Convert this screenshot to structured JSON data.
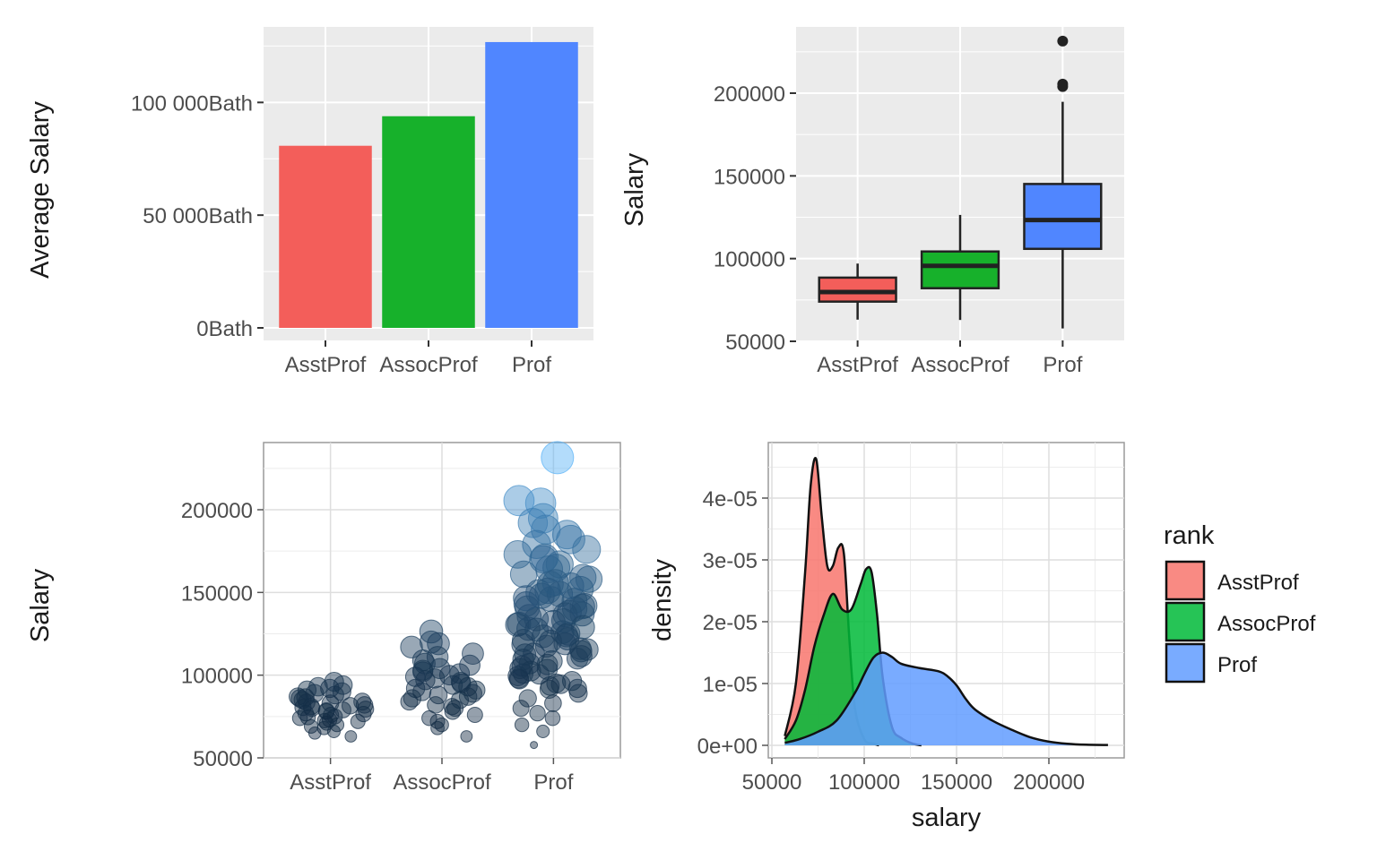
{
  "colors": {
    "asst": "#F8766D",
    "assoc": "#00BA38",
    "prof": "#619CFF",
    "bar_asst": "#F35E5A",
    "bar_assoc": "#17B12B",
    "bar_prof": "#5086FF",
    "point_dark": "#132B43",
    "point_light": "#56B1F7",
    "panel_bg": "#EBEBEB"
  },
  "chart_data": [
    {
      "type": "bar",
      "categories": [
        "AsstProf",
        "AssocProf",
        "Prof"
      ],
      "values": [
        80776,
        93876,
        126772
      ],
      "ylabel": "Average Salary",
      "xlabel": "",
      "ylim": [
        0,
        133112
      ],
      "yticks": [
        0,
        50000,
        100000
      ],
      "ytick_labels": [
        "0Bath",
        "50 000Bath",
        "100 000Bath"
      ],
      "grid": true
    },
    {
      "type": "box",
      "categories": [
        "AsstProf",
        "AssocProf",
        "Prof"
      ],
      "boxes": [
        {
          "lower_whisker": 63100,
          "q1": 74000,
          "median": 79800,
          "q3": 88500,
          "upper_whisker": 97000,
          "outliers": []
        },
        {
          "lower_whisker": 62900,
          "q1": 82100,
          "median": 95600,
          "q3": 104300,
          "upper_whisker": 126400,
          "outliers": []
        },
        {
          "lower_whisker": 57800,
          "q1": 105900,
          "median": 123300,
          "q3": 145100,
          "upper_whisker": 194800,
          "outliers": [
            204000,
            205500,
            231500
          ]
        }
      ],
      "ylabel": "Salary",
      "xlabel": "",
      "ylim": [
        47000,
        240000
      ],
      "yticks": [
        50000,
        100000,
        150000,
        200000
      ],
      "grid": true
    },
    {
      "type": "scatter",
      "categories": [
        "AsstProf",
        "AssocProf",
        "Prof"
      ],
      "description": "jittered points, size and color mapped to salary",
      "points": {
        "AsstProf": [
          92000,
          88000,
          85000,
          80000,
          78000,
          76000,
          74000,
          72000,
          70000,
          68000,
          65000,
          63000,
          90000,
          86000,
          83000,
          81000,
          79000,
          77000,
          75000,
          73000,
          91000,
          87000,
          84000,
          82000,
          80500,
          78500,
          76500,
          74500,
          72500,
          96000,
          94000,
          89000,
          83500,
          79500,
          71000,
          69000,
          66000,
          93000,
          86500,
          81500
        ],
        "AssocProf": [
          126400,
          120000,
          117000,
          113000,
          109000,
          106000,
          104000,
          102000,
          100000,
          98000,
          96000,
          94000,
          92000,
          90000,
          88000,
          86000,
          84000,
          82000,
          80000,
          78000,
          76000,
          74000,
          72000,
          70000,
          68000,
          63000,
          119000,
          111000,
          107000,
          103000,
          101000,
          99000,
          97000,
          95000,
          93000,
          91000,
          89000,
          87000,
          85000,
          81000
        ],
        "Prof": [
          231500,
          205500,
          204000,
          194800,
          192000,
          188000,
          185000,
          182000,
          179000,
          176000,
          173000,
          170000,
          167000,
          164000,
          161000,
          158000,
          155000,
          152000,
          149000,
          146000,
          143000,
          140000,
          137000,
          134000,
          131000,
          128000,
          125000,
          122000,
          119000,
          116000,
          113000,
          110000,
          107000,
          104000,
          101000,
          98000,
          95000,
          92000,
          89000,
          86000,
          83000,
          80000,
          77000,
          74000,
          70000,
          66000,
          57800,
          150000,
          145000,
          140500,
          135500,
          130500,
          126000,
          121000,
          117500,
          112500,
          108500,
          103500,
          99500,
          96500,
          93500,
          154000,
          148000,
          142000,
          138000,
          133000,
          127500,
          123500,
          118500,
          114500,
          109500,
          105500,
          102500,
          100500,
          97500,
          94500,
          91500,
          171000,
          165000,
          159000,
          156000,
          151000,
          146500,
          141500,
          136500,
          132000,
          129000,
          124000,
          120500,
          115500,
          111500,
          106500
        ]
      },
      "ylabel": "Salary",
      "xlabel": "",
      "ylim": [
        50000,
        240000
      ],
      "yticks": [
        50000,
        100000,
        150000,
        200000
      ],
      "grid": true
    },
    {
      "type": "area",
      "description": "density curves per rank",
      "series": [
        {
          "name": "AsstProf",
          "x": [
            57000,
            63000,
            68000,
            71000,
            74000,
            77000,
            80000,
            83000,
            86000,
            89000,
            92000,
            95000,
            100000,
            105000,
            108000
          ],
          "y": [
            1.5e-06,
            1e-05,
            2.8e-05,
            4.2e-05,
            4.63e-05,
            3.7e-05,
            2.9e-05,
            2.9e-05,
            3.2e-05,
            3.1e-05,
            1.7e-05,
            6e-06,
            1e-06,
            3e-07,
            0
          ]
        },
        {
          "name": "AssocProf",
          "x": [
            57000,
            63000,
            68000,
            73000,
            78000,
            83000,
            88000,
            93000,
            98000,
            101000,
            104000,
            107000,
            110000,
            115000,
            120000,
            126000,
            131000
          ],
          "y": [
            1e-06,
            4e-06,
            9e-06,
            1.6e-05,
            2.1e-05,
            2.45e-05,
            2.2e-05,
            2.2e-05,
            2.6e-05,
            2.85e-05,
            2.8e-05,
            2.1e-05,
            1.1e-05,
            3e-06,
            1.2e-06,
            3e-07,
            0
          ]
        },
        {
          "name": "Prof",
          "x": [
            57000,
            65000,
            75000,
            85000,
            95000,
            100000,
            105000,
            110000,
            115000,
            120000,
            130000,
            140000,
            145000,
            150000,
            155000,
            160000,
            170000,
            180000,
            190000,
            200000,
            210000,
            220000,
            232000
          ],
          "y": [
            4e-07,
            1e-06,
            2.2e-06,
            4e-06,
            8.5e-06,
            1.15e-05,
            1.42e-05,
            1.5e-05,
            1.43e-05,
            1.32e-05,
            1.25e-05,
            1.2e-05,
            1.12e-05,
            9.7e-06,
            7.5e-06,
            5.8e-06,
            3.9e-06,
            2.5e-06,
            1.3e-06,
            6e-07,
            2.5e-07,
            1e-07,
            5e-08
          ]
        }
      ],
      "xlabel": "salary",
      "ylabel": "density",
      "xlim": [
        45000,
        240000
      ],
      "ylim": [
        -2.5e-06,
        4.85e-05
      ],
      "xticks": [
        50000,
        100000,
        150000,
        200000
      ],
      "yticks": [
        0,
        1e-05,
        2e-05,
        3e-05,
        4e-05
      ],
      "ytick_labels": [
        "0e+00",
        "1e-05",
        "2e-05",
        "3e-05",
        "4e-05"
      ],
      "legend": {
        "title": "rank",
        "entries": [
          "AsstProf",
          "AssocProf",
          "Prof"
        ],
        "placement": "right"
      },
      "grid": true
    }
  ]
}
